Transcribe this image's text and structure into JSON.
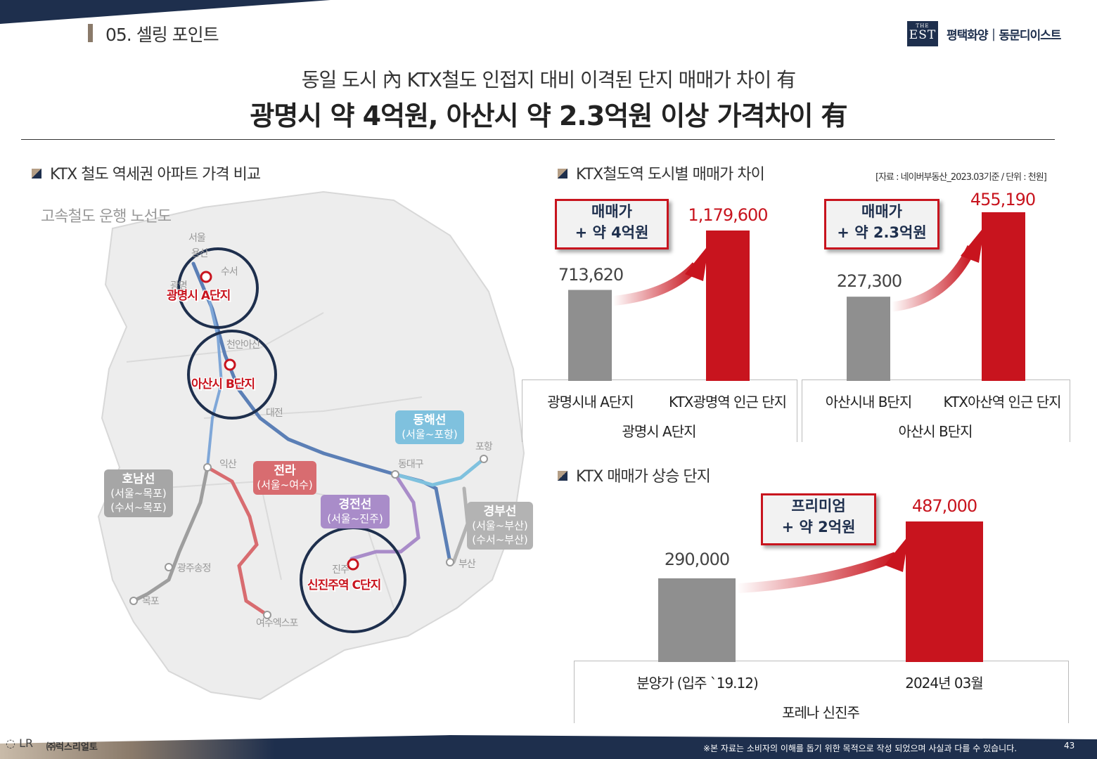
{
  "header": {
    "section": "05. 셀링 포인트",
    "logo_the": "THE",
    "logo_est": "EST",
    "brand": "평택화양｜동문디이스트",
    "headline1": "동일 도시 內 KTX철도 인접지 대비 이격된 단지 매매가 차이 有",
    "headline2": "광명시 약 4억원, 아산시 약 2.3억원 이상 가격차이 有"
  },
  "map_section": {
    "subtitle": "KTX 철도 역세권 아파트 가격 비교",
    "map_title": "고속철도 운행 노선도",
    "cities": [
      "서울",
      "용산",
      "수서",
      "광명",
      "천안아산",
      "대전",
      "익산",
      "광주송정",
      "목포",
      "여수엑스포",
      "진주",
      "동대구",
      "포항",
      "부산"
    ],
    "pins": [
      "광명시 A단지",
      "아산시 B단지",
      "신진주역 C단지"
    ],
    "lines": [
      {
        "name": "동해선",
        "route": "(서울~포항)",
        "color": "#7fc1de"
      },
      {
        "name": "호남선",
        "route1": "(서울~목포)",
        "route2": "(수서~목포)",
        "color": "#a6a6a6"
      },
      {
        "name": "전라",
        "route": "(서울~여수)",
        "color": "#d86c70"
      },
      {
        "name": "경전선",
        "route": "(서울~진주)",
        "color": "#a98cc9"
      },
      {
        "name": "경부선",
        "route1": "(서울~부산)",
        "route2": "(수서~부산)",
        "color": "#b3b3b3"
      }
    ]
  },
  "price_section": {
    "subtitle": "KTX철도역 도시별 매매가 차이",
    "source": "[자료 : 네이버부동산_2023.03기준 / 단위 : 천원]"
  },
  "rise_section": {
    "subtitle": "KTX 매매가 상승 단지"
  },
  "chart_data": [
    {
      "type": "bar",
      "group": "광명시 A단지",
      "categories": [
        "광명시내 A단지",
        "KTX광명역 인근 단지"
      ],
      "values": [
        713620,
        1179600
      ],
      "labels": [
        "713,620",
        "1,179,600"
      ],
      "callout": [
        "매매가",
        "+ 약 4억원"
      ],
      "colors": [
        "#8f8f8f",
        "#c8141e"
      ]
    },
    {
      "type": "bar",
      "group": "아산시 B단지",
      "categories": [
        "아산시내 B단지",
        "KTX아산역 인근 단지"
      ],
      "values": [
        227300,
        455190
      ],
      "labels": [
        "227,300",
        "455,190"
      ],
      "callout": [
        "매매가",
        "+ 약 2.3억원"
      ],
      "colors": [
        "#8f8f8f",
        "#c8141e"
      ]
    },
    {
      "type": "bar",
      "group": "포레나 신진주",
      "categories": [
        "분양가 (입주 `19.12)",
        "2024년 03월"
      ],
      "values": [
        290000,
        487000
      ],
      "labels": [
        "290,000",
        "487,000"
      ],
      "callout": [
        "프리미엄",
        "+ 약 2억원"
      ],
      "colors": [
        "#8f8f8f",
        "#c8141e"
      ]
    }
  ],
  "footer": {
    "logo": "LR",
    "company": "㈜럭스리얼토",
    "note": "※본 자료는 소비자의 이해를 돕기 위한 목적으로 작성 되었으며 사실과 다를 수 있습니다.",
    "page": "43"
  }
}
